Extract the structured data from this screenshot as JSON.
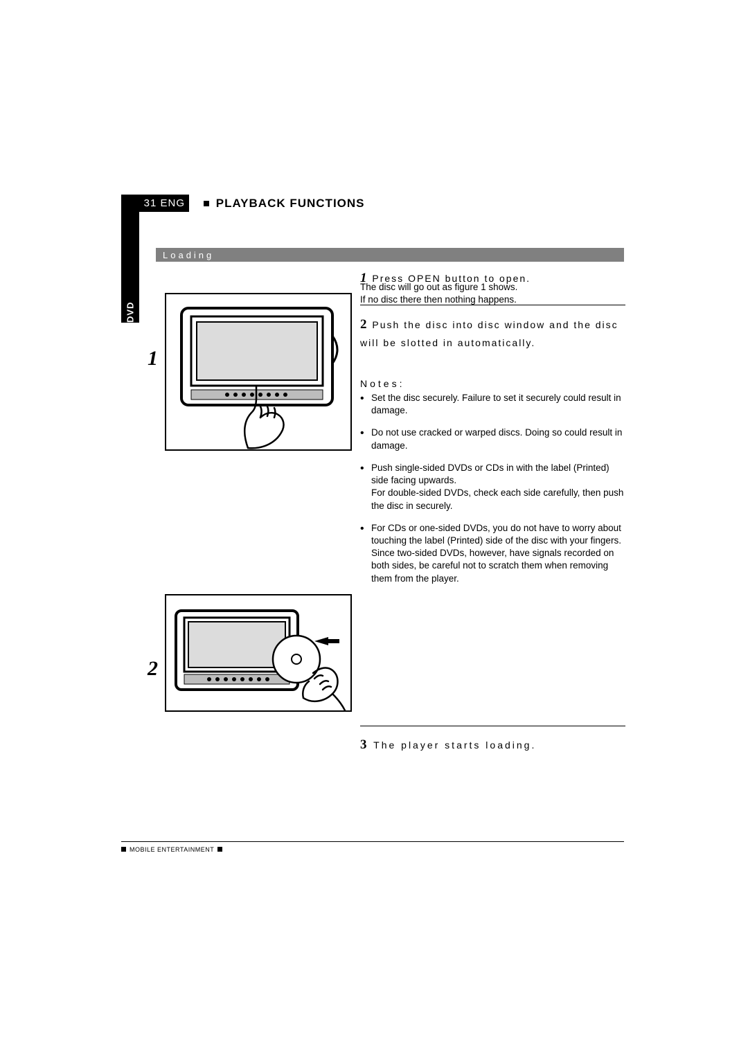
{
  "colors": {
    "black": "#000000",
    "white": "#ffffff",
    "gray_bar": "#808080"
  },
  "typography": {
    "body_family": "Arial, Helvetica, sans-serif",
    "serif_italic_family": "Georgia, 'Times New Roman', serif",
    "title_fontsize_pt": 13,
    "body_fontsize_pt": 10,
    "step_number_fontsize_pt": 14,
    "figure_number_fontsize_pt": 22
  },
  "header": {
    "page_number": "31",
    "lang": "ENG",
    "title": "PLAYBACK FUNCTIONS"
  },
  "side_tab": "DVD",
  "section": {
    "title": "Loading"
  },
  "figures": {
    "fig1": {
      "number": "1",
      "alt": "Device with hand pressing OPEN; disc tray open"
    },
    "fig2": {
      "number": "2",
      "alt": "Hand inserting disc into slot with arrow"
    }
  },
  "steps": {
    "s1": {
      "num": "1",
      "head": "Press OPEN button to open.",
      "body_line1": "The disc will go out as figure 1 shows.",
      "body_line2": "If no disc there then nothing happens."
    },
    "s2": {
      "num": "2",
      "head": "Push the disc into disc window and the disc will be slotted in automatically."
    },
    "s3": {
      "num": "3",
      "head": "The player starts loading."
    }
  },
  "notes": {
    "title": "Notes:",
    "items": [
      "Set the disc securely. Failure to set it securely could result in damage.",
      "Do not use cracked or warped discs. Doing so could result in damage.",
      "Push single-sided DVDs or CDs in with the label (Printed) side facing upwards.\nFor double-sided DVDs, check each side carefully, then push the disc in securely.",
      "For CDs or one-sided DVDs, you do not have to worry about touching the label (Printed) side of the disc with your fingers. Since two-sided DVDs, however, have signals recorded on both sides, be careful not to scratch them when removing them from the player."
    ]
  },
  "footer": {
    "text": "MOBILE ENTERTAINMENT"
  }
}
